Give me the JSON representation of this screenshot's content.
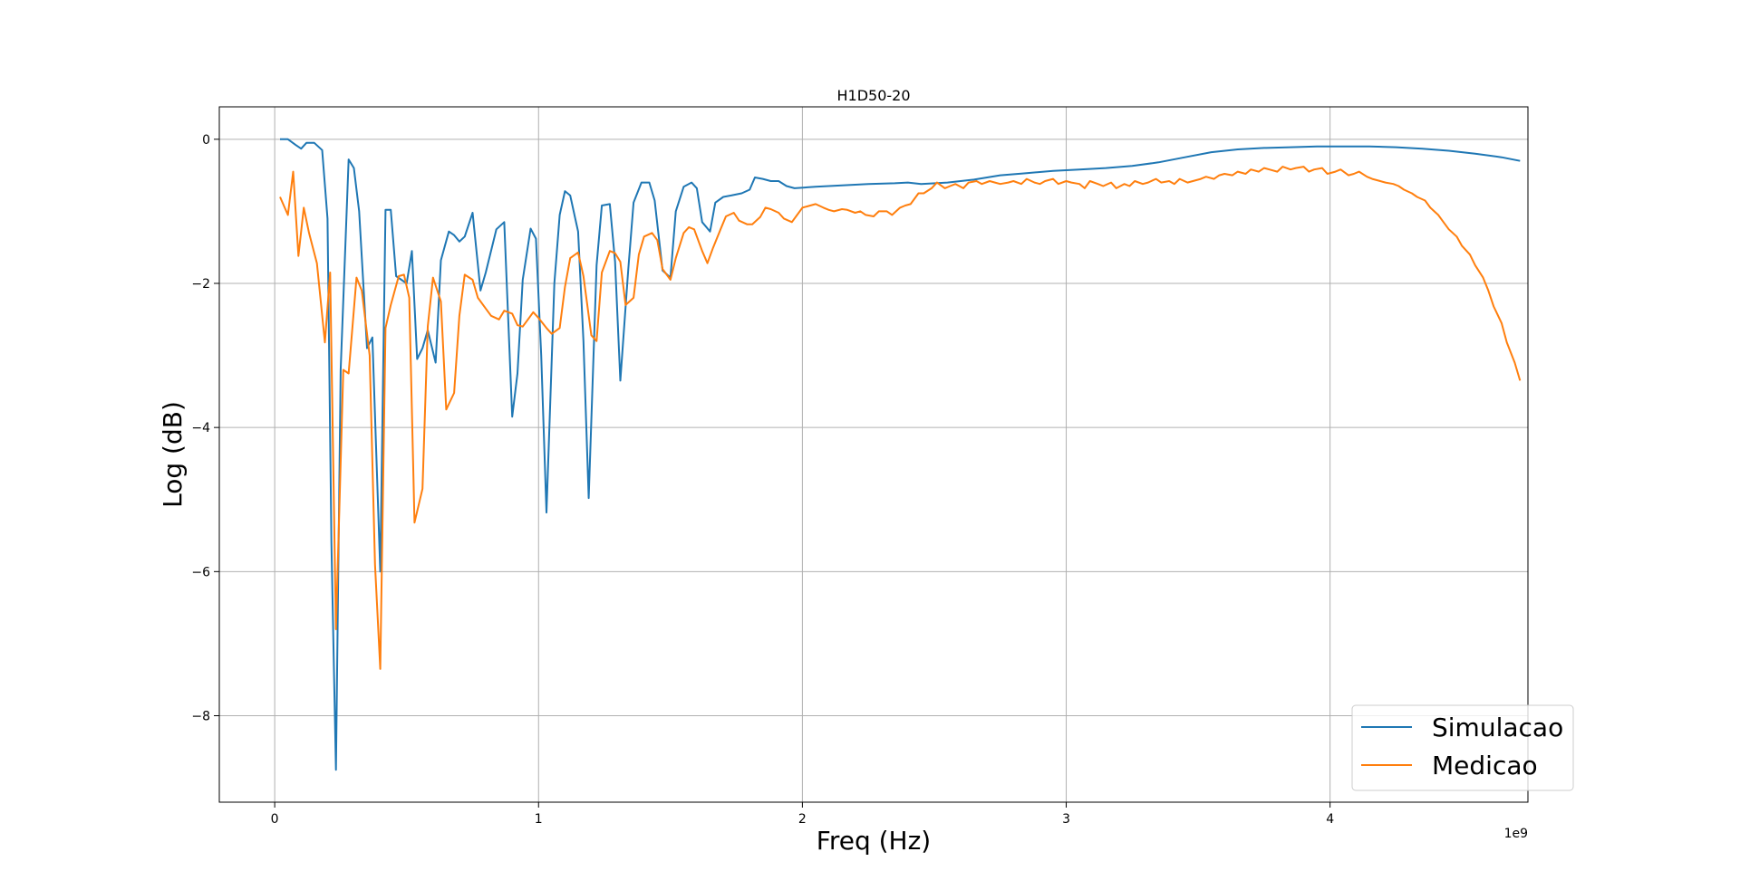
{
  "chart_data": {
    "type": "line",
    "title": "H1D50-20",
    "xlabel": "Freq (Hz)",
    "ylabel": "Log (dB)",
    "x_offset_label": "1e9",
    "xlim": [
      -0.21,
      4.75
    ],
    "ylim": [
      -9.2,
      0.45
    ],
    "x_ticks": [
      0,
      1,
      2,
      3,
      4
    ],
    "x_tick_labels": [
      "0",
      "1",
      "2",
      "3",
      "4"
    ],
    "y_ticks": [
      0,
      -2,
      -4,
      -6,
      -8
    ],
    "y_tick_labels": [
      "0",
      "−2",
      "−4",
      "−6",
      "−8"
    ],
    "grid": true,
    "legend_position": "bottom-right",
    "series": [
      {
        "name": "Simulacao",
        "color": "#1f77b4",
        "x": [
          0.02,
          0.05,
          0.08,
          0.1,
          0.12,
          0.15,
          0.18,
          0.2,
          0.215,
          0.232,
          0.25,
          0.28,
          0.3,
          0.32,
          0.35,
          0.37,
          0.4,
          0.42,
          0.44,
          0.46,
          0.5,
          0.52,
          0.54,
          0.56,
          0.58,
          0.61,
          0.63,
          0.66,
          0.68,
          0.7,
          0.72,
          0.75,
          0.78,
          0.8,
          0.84,
          0.87,
          0.9,
          0.92,
          0.94,
          0.97,
          0.99,
          1.01,
          1.03,
          1.06,
          1.08,
          1.1,
          1.12,
          1.15,
          1.17,
          1.19,
          1.22,
          1.24,
          1.27,
          1.29,
          1.31,
          1.34,
          1.36,
          1.39,
          1.42,
          1.44,
          1.47,
          1.5,
          1.52,
          1.55,
          1.58,
          1.6,
          1.62,
          1.65,
          1.67,
          1.7,
          1.73,
          1.77,
          1.8,
          1.82,
          1.85,
          1.88,
          1.91,
          1.94,
          1.97,
          2.05,
          2.15,
          2.25,
          2.35,
          2.4,
          2.45,
          2.55,
          2.65,
          2.75,
          2.85,
          2.95,
          3.05,
          3.15,
          3.25,
          3.35,
          3.45,
          3.55,
          3.65,
          3.75,
          3.85,
          3.95,
          4.05,
          4.15,
          4.25,
          4.35,
          4.45,
          4.55,
          4.65,
          4.72
        ],
        "y": [
          0.0,
          0.0,
          -0.08,
          -0.13,
          -0.05,
          -0.05,
          -0.15,
          -1.1,
          -5.6,
          -8.75,
          -3.2,
          -0.28,
          -0.4,
          -1.0,
          -2.9,
          -2.75,
          -6.0,
          -0.98,
          -0.98,
          -1.9,
          -2.0,
          -1.55,
          -3.05,
          -2.9,
          -2.65,
          -3.1,
          -1.68,
          -1.28,
          -1.33,
          -1.42,
          -1.35,
          -1.02,
          -2.1,
          -1.85,
          -1.25,
          -1.15,
          -3.85,
          -3.25,
          -1.95,
          -1.24,
          -1.38,
          -3.0,
          -5.18,
          -2.0,
          -1.05,
          -0.72,
          -0.78,
          -1.28,
          -2.8,
          -4.98,
          -1.75,
          -0.92,
          -0.9,
          -1.7,
          -3.35,
          -1.8,
          -0.88,
          -0.6,
          -0.6,
          -0.85,
          -1.82,
          -1.92,
          -1.0,
          -0.66,
          -0.6,
          -0.68,
          -1.15,
          -1.28,
          -0.88,
          -0.8,
          -0.78,
          -0.75,
          -0.7,
          -0.53,
          -0.55,
          -0.58,
          -0.58,
          -0.65,
          -0.68,
          -0.66,
          -0.64,
          -0.62,
          -0.61,
          -0.6,
          -0.62,
          -0.6,
          -0.56,
          -0.5,
          -0.47,
          -0.44,
          -0.42,
          -0.4,
          -0.37,
          -0.32,
          -0.25,
          -0.18,
          -0.14,
          -0.12,
          -0.11,
          -0.1,
          -0.1,
          -0.1,
          -0.11,
          -0.13,
          -0.16,
          -0.2,
          -0.25,
          -0.3
        ]
      },
      {
        "name": "Medicao",
        "color": "#ff7f0e",
        "x": [
          0.02,
          0.05,
          0.07,
          0.09,
          0.11,
          0.13,
          0.16,
          0.19,
          0.21,
          0.232,
          0.26,
          0.28,
          0.31,
          0.33,
          0.36,
          0.38,
          0.4,
          0.42,
          0.44,
          0.47,
          0.49,
          0.51,
          0.53,
          0.56,
          0.58,
          0.6,
          0.63,
          0.65,
          0.68,
          0.7,
          0.72,
          0.75,
          0.77,
          0.8,
          0.82,
          0.85,
          0.87,
          0.9,
          0.92,
          0.94,
          0.96,
          0.98,
          1.0,
          1.03,
          1.05,
          1.08,
          1.1,
          1.12,
          1.15,
          1.17,
          1.2,
          1.22,
          1.24,
          1.27,
          1.29,
          1.31,
          1.33,
          1.36,
          1.38,
          1.4,
          1.43,
          1.45,
          1.47,
          1.5,
          1.52,
          1.55,
          1.57,
          1.59,
          1.62,
          1.64,
          1.66,
          1.69,
          1.71,
          1.74,
          1.76,
          1.79,
          1.81,
          1.84,
          1.86,
          1.88,
          1.91,
          1.93,
          1.96,
          1.98,
          2.0,
          2.03,
          2.05,
          2.08,
          2.1,
          2.12,
          2.15,
          2.17,
          2.2,
          2.22,
          2.24,
          2.27,
          2.29,
          2.32,
          2.34,
          2.37,
          2.39,
          2.41,
          2.44,
          2.46,
          2.49,
          2.51,
          2.54,
          2.56,
          2.58,
          2.61,
          2.63,
          2.66,
          2.68,
          2.71,
          2.73,
          2.75,
          2.78,
          2.8,
          2.83,
          2.85,
          2.88,
          2.9,
          2.92,
          2.95,
          2.97,
          3.0,
          3.02,
          3.05,
          3.07,
          3.09,
          3.12,
          3.14,
          3.17,
          3.19,
          3.22,
          3.24,
          3.26,
          3.29,
          3.31,
          3.34,
          3.36,
          3.39,
          3.41,
          3.43,
          3.46,
          3.48,
          3.51,
          3.53,
          3.56,
          3.58,
          3.6,
          3.63,
          3.65,
          3.68,
          3.7,
          3.73,
          3.75,
          3.77,
          3.8,
          3.82,
          3.85,
          3.87,
          3.9,
          3.92,
          3.94,
          3.97,
          3.99,
          4.02,
          4.04,
          4.07,
          4.09,
          4.11,
          4.14,
          4.16,
          4.19,
          4.21,
          4.24,
          4.26,
          4.28,
          4.31,
          4.33,
          4.36,
          4.38,
          4.41,
          4.43,
          4.45,
          4.48,
          4.5,
          4.53,
          4.55,
          4.58,
          4.6,
          4.62,
          4.65,
          4.67,
          4.7,
          4.72
        ],
        "y": [
          -0.8,
          -1.05,
          -0.45,
          -1.62,
          -0.95,
          -1.3,
          -1.72,
          -2.82,
          -1.85,
          -6.8,
          -3.2,
          -3.25,
          -1.92,
          -2.1,
          -3.0,
          -5.9,
          -7.35,
          -2.62,
          -2.3,
          -1.9,
          -1.88,
          -2.2,
          -5.32,
          -4.85,
          -2.6,
          -1.92,
          -2.25,
          -3.75,
          -3.52,
          -2.45,
          -1.88,
          -1.95,
          -2.2,
          -2.35,
          -2.45,
          -2.5,
          -2.38,
          -2.42,
          -2.58,
          -2.6,
          -2.5,
          -2.4,
          -2.48,
          -2.62,
          -2.7,
          -2.62,
          -2.05,
          -1.65,
          -1.57,
          -1.9,
          -2.72,
          -2.8,
          -1.85,
          -1.55,
          -1.58,
          -1.7,
          -2.3,
          -2.2,
          -1.6,
          -1.35,
          -1.3,
          -1.4,
          -1.8,
          -1.95,
          -1.65,
          -1.3,
          -1.22,
          -1.25,
          -1.55,
          -1.72,
          -1.52,
          -1.25,
          -1.07,
          -1.02,
          -1.13,
          -1.18,
          -1.18,
          -1.08,
          -0.95,
          -0.97,
          -1.02,
          -1.1,
          -1.15,
          -1.05,
          -0.95,
          -0.92,
          -0.9,
          -0.95,
          -0.98,
          -1.0,
          -0.97,
          -0.98,
          -1.02,
          -1.0,
          -1.05,
          -1.07,
          -1.0,
          -1.0,
          -1.05,
          -0.95,
          -0.92,
          -0.9,
          -0.75,
          -0.75,
          -0.68,
          -0.6,
          -0.68,
          -0.65,
          -0.62,
          -0.68,
          -0.6,
          -0.58,
          -0.62,
          -0.58,
          -0.6,
          -0.62,
          -0.6,
          -0.58,
          -0.62,
          -0.55,
          -0.6,
          -0.62,
          -0.58,
          -0.55,
          -0.62,
          -0.58,
          -0.6,
          -0.62,
          -0.68,
          -0.58,
          -0.62,
          -0.65,
          -0.6,
          -0.68,
          -0.62,
          -0.65,
          -0.58,
          -0.62,
          -0.6,
          -0.55,
          -0.6,
          -0.58,
          -0.62,
          -0.55,
          -0.6,
          -0.58,
          -0.55,
          -0.52,
          -0.55,
          -0.5,
          -0.48,
          -0.5,
          -0.45,
          -0.48,
          -0.42,
          -0.45,
          -0.4,
          -0.42,
          -0.45,
          -0.38,
          -0.42,
          -0.4,
          -0.38,
          -0.45,
          -0.42,
          -0.4,
          -0.48,
          -0.45,
          -0.42,
          -0.5,
          -0.48,
          -0.45,
          -0.52,
          -0.55,
          -0.58,
          -0.6,
          -0.62,
          -0.65,
          -0.7,
          -0.75,
          -0.8,
          -0.85,
          -0.95,
          -1.05,
          -1.15,
          -1.25,
          -1.35,
          -1.48,
          -1.6,
          -1.75,
          -1.92,
          -2.1,
          -2.32,
          -2.55,
          -2.82,
          -3.1,
          -3.35
        ]
      }
    ]
  }
}
